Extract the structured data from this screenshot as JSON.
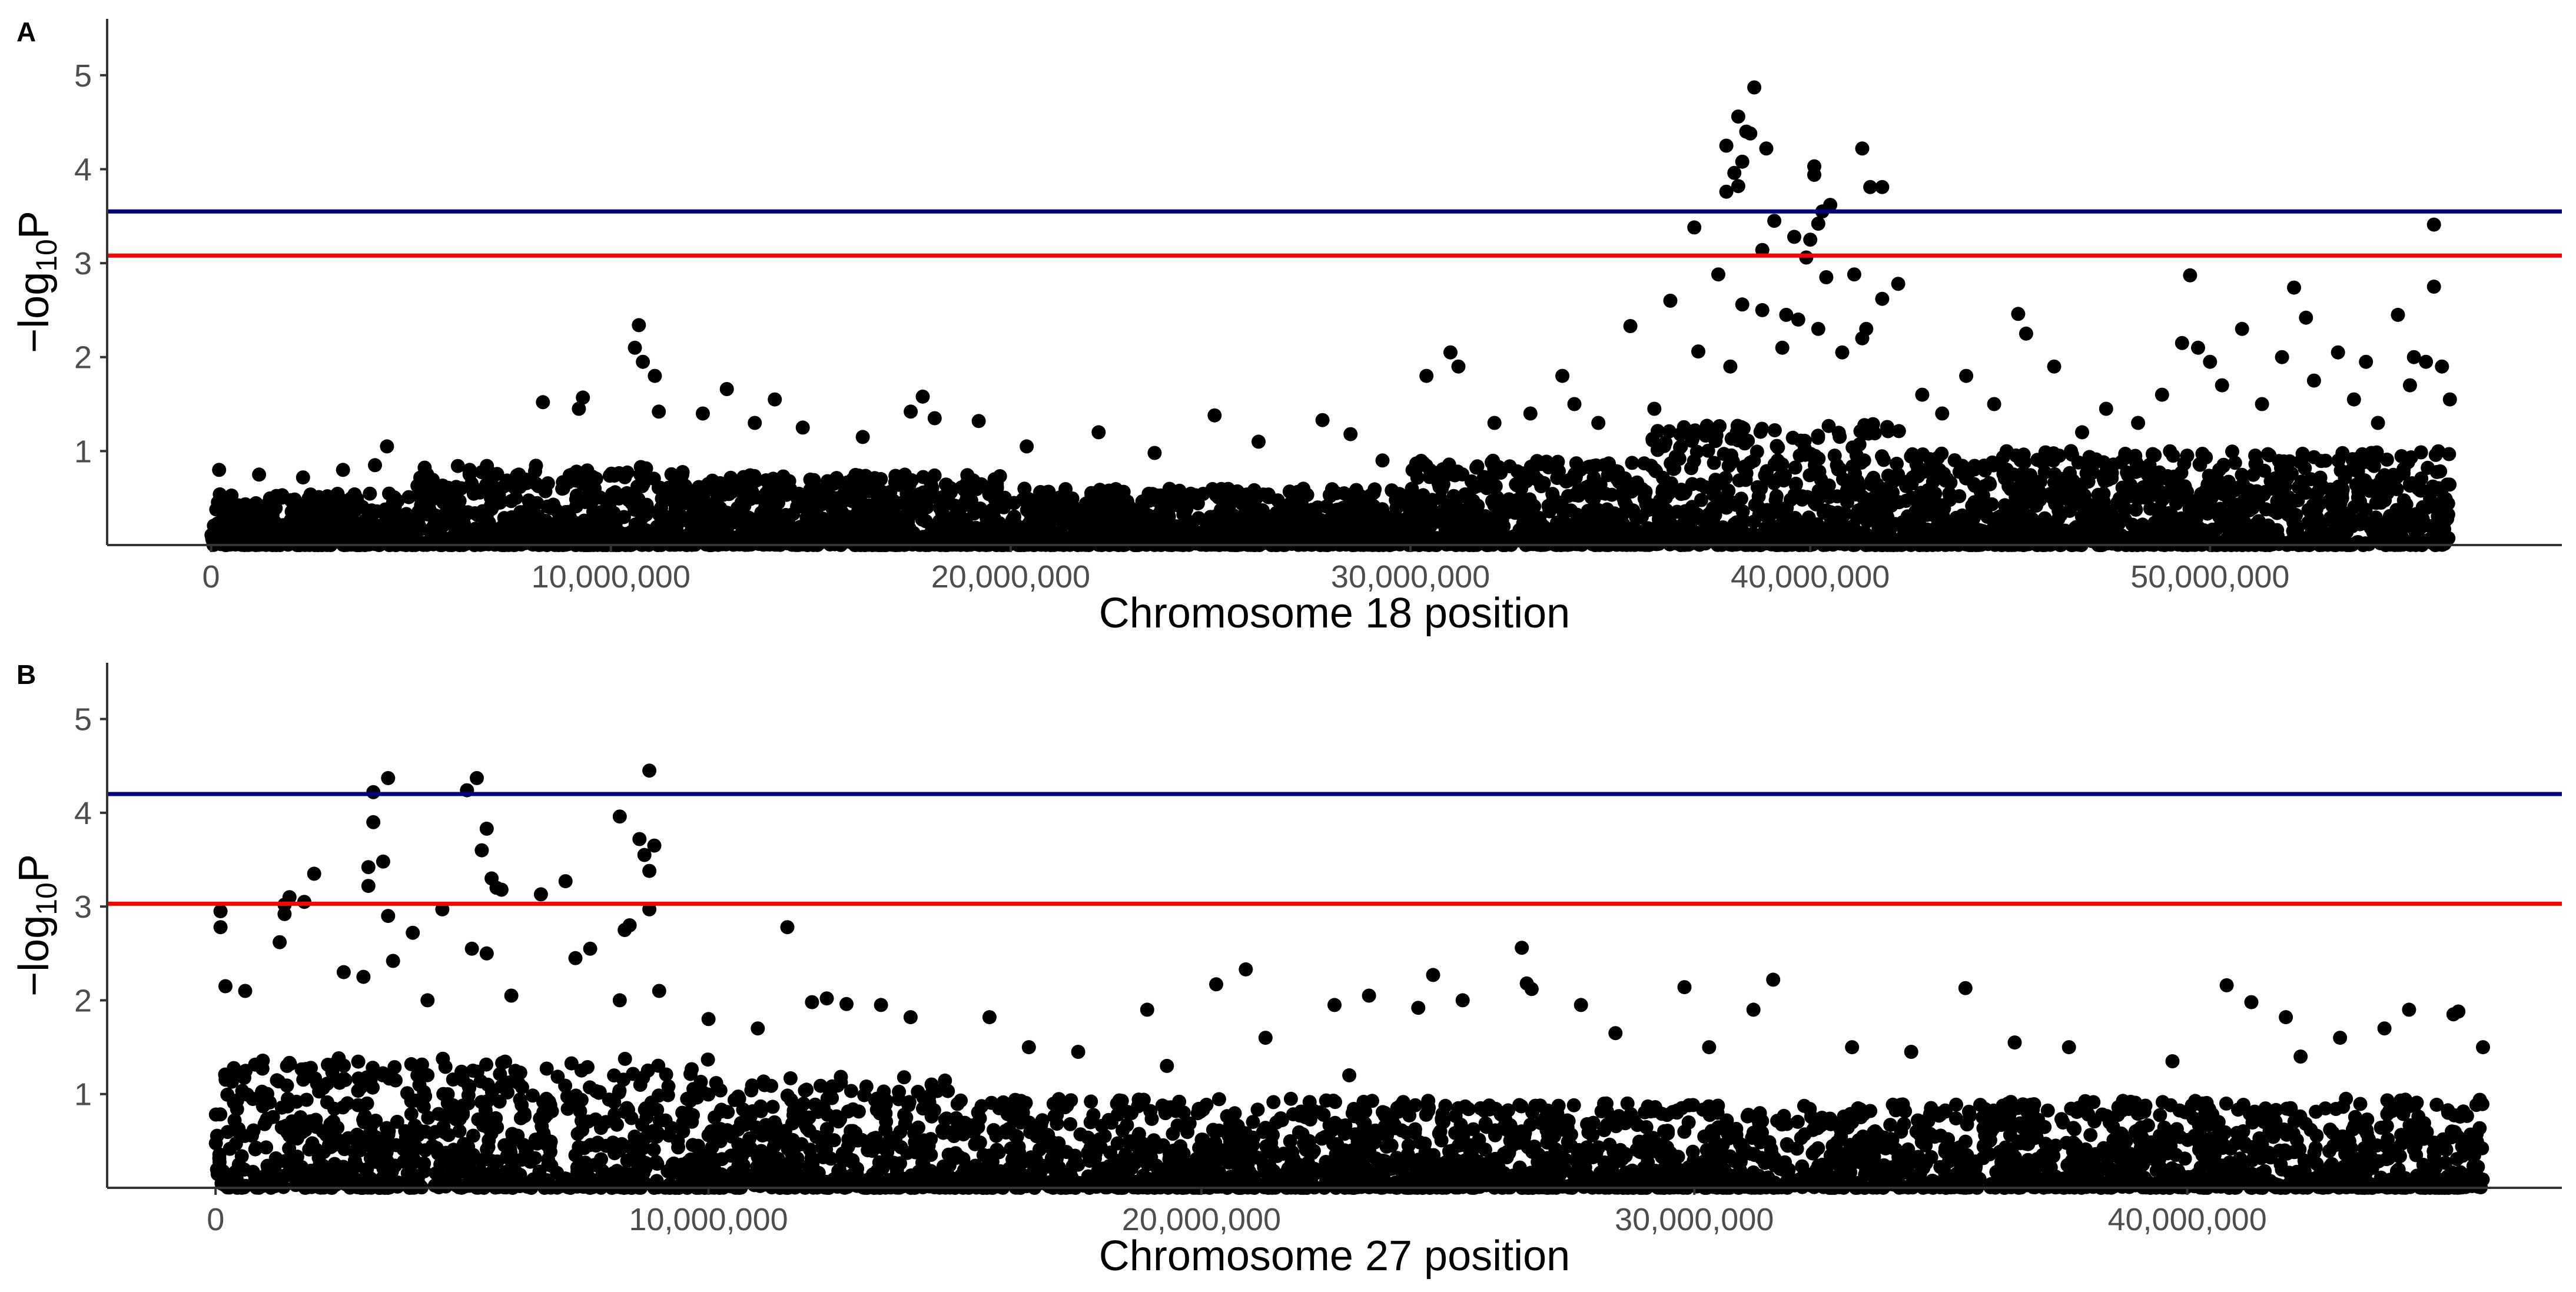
{
  "colors": {
    "suggestive_line": "#FF0000",
    "significance_line": "#000080",
    "points": "#000000"
  },
  "chart_data": [
    {
      "type": "scatter",
      "panel": "A",
      "xlabel": "Chromosome 18 position",
      "ylabel_main": "−log",
      "ylabel_sub": "10",
      "ylabel_end": "P",
      "xlim": [
        -2600000,
        58800000
      ],
      "ylim": [
        0,
        5.6
      ],
      "xticks": [
        0,
        10000000,
        20000000,
        30000000,
        40000000,
        50000000
      ],
      "xtick_labels": [
        "0",
        "10,000,000",
        "20,000,000",
        "30,000,000",
        "40,000,000",
        "50,000,000"
      ],
      "yticks": [
        1,
        2,
        3,
        4,
        5
      ],
      "ytick_labels": [
        "1",
        "2",
        "3",
        "4",
        "5"
      ],
      "hlines": [
        {
          "name": "suggestive-threshold",
          "value": 3.08,
          "color": "#FF0000"
        },
        {
          "name": "significance-threshold",
          "value": 3.55,
          "color": "#000080"
        }
      ],
      "points": [
        [
          38600000,
          4.87
        ],
        [
          38200000,
          4.56
        ],
        [
          38500000,
          4.38
        ],
        [
          38400000,
          4.4
        ],
        [
          37900000,
          4.25
        ],
        [
          41300000,
          4.22
        ],
        [
          38900000,
          4.22
        ],
        [
          38300000,
          4.08
        ],
        [
          40100000,
          4.03
        ],
        [
          40100000,
          3.94
        ],
        [
          38100000,
          3.96
        ],
        [
          38200000,
          3.82
        ],
        [
          41500000,
          3.81
        ],
        [
          41800000,
          3.81
        ],
        [
          37900000,
          3.76
        ],
        [
          40500000,
          3.62
        ],
        [
          40300000,
          3.55
        ],
        [
          55600000,
          3.41
        ],
        [
          37100000,
          3.38
        ],
        [
          39100000,
          3.45
        ],
        [
          40000000,
          3.25
        ],
        [
          39600000,
          3.28
        ],
        [
          40200000,
          3.42
        ],
        [
          38800000,
          3.14
        ],
        [
          39900000,
          3.06
        ],
        [
          40400000,
          2.85
        ],
        [
          41100000,
          2.88
        ],
        [
          37700000,
          2.88
        ],
        [
          49500000,
          2.87
        ],
        [
          52100000,
          2.74
        ],
        [
          55600000,
          2.75
        ],
        [
          42200000,
          2.78
        ],
        [
          41800000,
          2.62
        ],
        [
          36500000,
          2.6
        ],
        [
          38300000,
          2.56
        ],
        [
          38800000,
          2.5
        ],
        [
          39400000,
          2.45
        ],
        [
          39700000,
          2.4
        ],
        [
          40200000,
          2.3
        ],
        [
          45200000,
          2.46
        ],
        [
          54700000,
          2.45
        ],
        [
          35500000,
          2.33
        ],
        [
          41400000,
          2.3
        ],
        [
          52400000,
          2.42
        ],
        [
          10700000,
          2.34
        ],
        [
          10600000,
          2.1
        ],
        [
          10800000,
          1.95
        ],
        [
          11100000,
          1.8
        ],
        [
          37200000,
          2.06
        ],
        [
          38000000,
          1.9
        ],
        [
          39300000,
          2.1
        ],
        [
          40800000,
          2.05
        ],
        [
          41300000,
          2.2
        ],
        [
          43900000,
          1.8
        ],
        [
          45400000,
          2.25
        ],
        [
          49300000,
          2.15
        ],
        [
          49700000,
          2.1
        ],
        [
          50000000,
          1.95
        ],
        [
          50800000,
          2.3
        ],
        [
          51800000,
          2.0
        ],
        [
          53200000,
          2.05
        ],
        [
          53900000,
          1.95
        ],
        [
          55100000,
          2.0
        ],
        [
          55400000,
          1.95
        ],
        [
          55800000,
          1.9
        ],
        [
          31000000,
          2.05
        ],
        [
          31200000,
          1.9
        ],
        [
          30400000,
          1.8
        ],
        [
          46100000,
          1.9
        ],
        [
          33800000,
          1.8
        ],
        [
          12900000,
          1.66
        ],
        [
          14100000,
          1.55
        ],
        [
          17800000,
          1.58
        ],
        [
          8300000,
          1.52
        ],
        [
          9300000,
          1.57
        ],
        [
          9200000,
          1.45
        ],
        [
          11200000,
          1.42
        ],
        [
          12300000,
          1.4
        ],
        [
          13600000,
          1.3
        ],
        [
          14800000,
          1.25
        ],
        [
          17500000,
          1.42
        ],
        [
          18100000,
          1.35
        ],
        [
          19200000,
          1.32
        ],
        [
          25100000,
          1.38
        ],
        [
          27800000,
          1.33
        ],
        [
          22200000,
          1.2
        ],
        [
          28500000,
          1.18
        ],
        [
          4400000,
          1.05
        ],
        [
          4100000,
          0.85
        ],
        [
          3300000,
          0.8
        ],
        [
          200000,
          0.8
        ],
        [
          1200000,
          0.75
        ],
        [
          2300000,
          0.72
        ],
        [
          6200000,
          0.6
        ],
        [
          7700000,
          0.75
        ],
        [
          16300000,
          1.15
        ],
        [
          20400000,
          1.05
        ],
        [
          23600000,
          0.98
        ],
        [
          26200000,
          1.1
        ],
        [
          29300000,
          0.9
        ],
        [
          32100000,
          1.3
        ],
        [
          33000000,
          1.4
        ],
        [
          34100000,
          1.5
        ],
        [
          34700000,
          1.3
        ],
        [
          36100000,
          1.45
        ],
        [
          42800000,
          1.6
        ],
        [
          43300000,
          1.4
        ],
        [
          44600000,
          1.5
        ],
        [
          47400000,
          1.45
        ],
        [
          48200000,
          1.3
        ],
        [
          48800000,
          1.6
        ],
        [
          50300000,
          1.7
        ],
        [
          51300000,
          1.5
        ],
        [
          52600000,
          1.75
        ],
        [
          53600000,
          1.55
        ],
        [
          54200000,
          1.3
        ],
        [
          55000000,
          1.7
        ],
        [
          56000000,
          1.55
        ],
        [
          46800000,
          1.2
        ]
      ],
      "baseline_density": [
        [
          0,
          5000000,
          0.55
        ],
        [
          5000000,
          12000000,
          0.85
        ],
        [
          12000000,
          20000000,
          0.75
        ],
        [
          20000000,
          30000000,
          0.6
        ],
        [
          30000000,
          36000000,
          0.9
        ],
        [
          36000000,
          42500000,
          1.3
        ],
        [
          42500000,
          56000000,
          1.0
        ]
      ]
    },
    {
      "type": "scatter",
      "panel": "B",
      "xlabel": "Chromosome 27 position",
      "ylabel_main": "−log",
      "ylabel_sub": "10",
      "ylabel_end": "P",
      "xlim": [
        -2200000,
        47600000
      ],
      "ylim": [
        0,
        5.6
      ],
      "xticks": [
        0,
        10000000,
        20000000,
        30000000,
        40000000
      ],
      "xtick_labels": [
        "0",
        "10,000,000",
        "20,000,000",
        "30,000,000",
        "40,000,000"
      ],
      "yticks": [
        1,
        2,
        3,
        4,
        5
      ],
      "ytick_labels": [
        "1",
        "2",
        "3",
        "4",
        "5"
      ],
      "hlines": [
        {
          "name": "suggestive-threshold",
          "value": 3.03,
          "color": "#FF0000"
        },
        {
          "name": "significance-threshold",
          "value": 4.2,
          "color": "#000080"
        }
      ],
      "points": [
        [
          8800000,
          4.45
        ],
        [
          3500000,
          4.37
        ],
        [
          5300000,
          4.37
        ],
        [
          3200000,
          4.22
        ],
        [
          5100000,
          4.24
        ],
        [
          8200000,
          3.96
        ],
        [
          3200000,
          3.9
        ],
        [
          5500000,
          3.83
        ],
        [
          8600000,
          3.72
        ],
        [
          8900000,
          3.65
        ],
        [
          8700000,
          3.55
        ],
        [
          5400000,
          3.6
        ],
        [
          3400000,
          3.48
        ],
        [
          3100000,
          3.42
        ],
        [
          8800000,
          3.38
        ],
        [
          2000000,
          3.35
        ],
        [
          5600000,
          3.3
        ],
        [
          7100000,
          3.27
        ],
        [
          5800000,
          3.18
        ],
        [
          6600000,
          3.13
        ],
        [
          1500000,
          3.1
        ],
        [
          1400000,
          3.02
        ],
        [
          1800000,
          3.05
        ],
        [
          3100000,
          3.22
        ],
        [
          5700000,
          3.2
        ],
        [
          100000,
          2.95
        ],
        [
          1400000,
          2.92
        ],
        [
          4600000,
          2.97
        ],
        [
          3500000,
          2.9
        ],
        [
          8800000,
          2.97
        ],
        [
          100000,
          2.78
        ],
        [
          11600000,
          2.78
        ],
        [
          8400000,
          2.8
        ],
        [
          8300000,
          2.75
        ],
        [
          4000000,
          2.72
        ],
        [
          26500000,
          2.56
        ],
        [
          1300000,
          2.62
        ],
        [
          7600000,
          2.55
        ],
        [
          5200000,
          2.55
        ],
        [
          5500000,
          2.5
        ],
        [
          3600000,
          2.42
        ],
        [
          7300000,
          2.45
        ],
        [
          2600000,
          2.3
        ],
        [
          20900000,
          2.33
        ],
        [
          31600000,
          2.22
        ],
        [
          24700000,
          2.27
        ],
        [
          20300000,
          2.17
        ],
        [
          29800000,
          2.14
        ],
        [
          35500000,
          2.13
        ],
        [
          40800000,
          2.16
        ],
        [
          26600000,
          2.18
        ],
        [
          26700000,
          2.12
        ],
        [
          200000,
          2.15
        ],
        [
          600000,
          2.1
        ],
        [
          3000000,
          2.25
        ],
        [
          9000000,
          2.1
        ],
        [
          4300000,
          2.0
        ],
        [
          6000000,
          2.05
        ],
        [
          8200000,
          2.0
        ],
        [
          25300000,
          2.0
        ],
        [
          12400000,
          2.02
        ],
        [
          12100000,
          1.98
        ],
        [
          12800000,
          1.96
        ],
        [
          13500000,
          1.95
        ],
        [
          18900000,
          1.9
        ],
        [
          22700000,
          1.95
        ],
        [
          23400000,
          2.05
        ],
        [
          24400000,
          1.92
        ],
        [
          27700000,
          1.95
        ],
        [
          31200000,
          1.9
        ],
        [
          41300000,
          1.98
        ],
        [
          42000000,
          1.82
        ],
        [
          44500000,
          1.9
        ],
        [
          45400000,
          1.85
        ],
        [
          45500000,
          1.88
        ],
        [
          10000000,
          1.8
        ],
        [
          14100000,
          1.82
        ],
        [
          15700000,
          1.82
        ],
        [
          11000000,
          1.7
        ],
        [
          16500000,
          1.5
        ],
        [
          17500000,
          1.45
        ],
        [
          21300000,
          1.6
        ],
        [
          28400000,
          1.65
        ],
        [
          30300000,
          1.5
        ],
        [
          33200000,
          1.5
        ],
        [
          34400000,
          1.45
        ],
        [
          36500000,
          1.55
        ],
        [
          37600000,
          1.5
        ],
        [
          39700000,
          1.35
        ],
        [
          42300000,
          1.4
        ],
        [
          43100000,
          1.6
        ],
        [
          44000000,
          1.7
        ],
        [
          46000000,
          1.5
        ],
        [
          19300000,
          1.3
        ],
        [
          23000000,
          1.2
        ]
      ],
      "baseline_density": [
        [
          0,
          10000000,
          1.4
        ],
        [
          10000000,
          15000000,
          1.2
        ],
        [
          15000000,
          25000000,
          0.95
        ],
        [
          25000000,
          35000000,
          0.9
        ],
        [
          35000000,
          46000000,
          0.95
        ]
      ]
    }
  ]
}
